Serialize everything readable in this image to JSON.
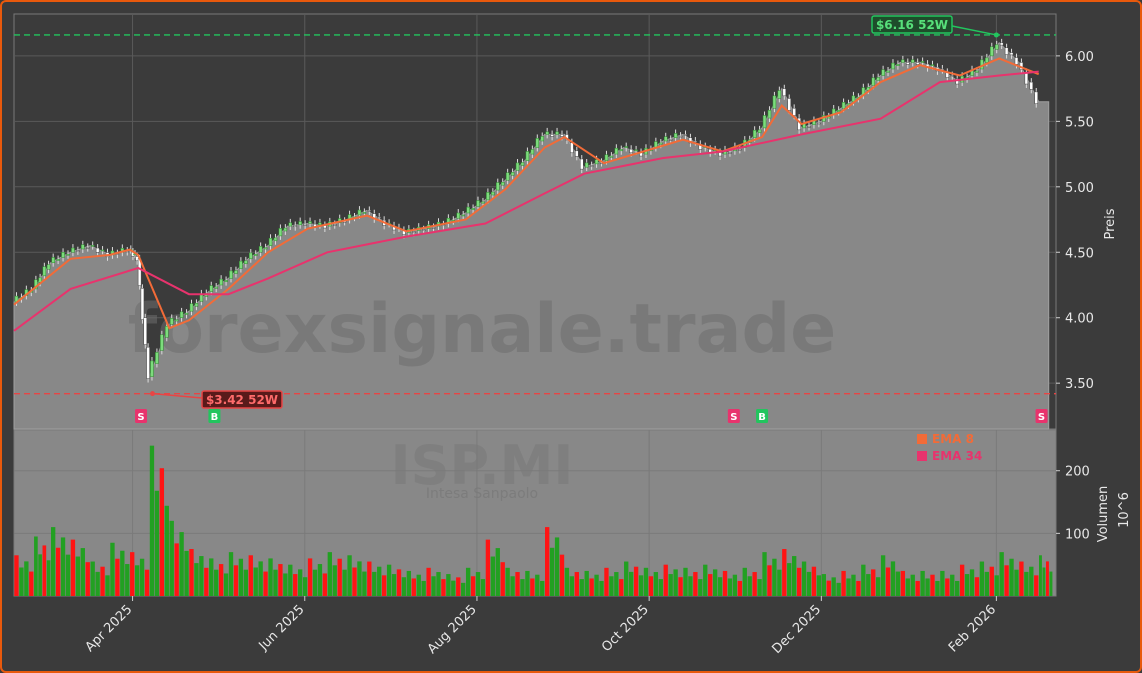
{
  "chart_data": [
    {
      "type": "candlestick",
      "panel": "price",
      "watermark": "forexsignale.trade",
      "ylabel": "Preis",
      "ylim": [
        3.15,
        6.32
      ],
      "y_ticks": [
        "3.50",
        "4.00",
        "4.50",
        "5.00",
        "5.50",
        "6.00"
      ],
      "y_tick_values": [
        3.5,
        4.0,
        4.5,
        5.0,
        5.5,
        6.0
      ],
      "x_ticks": [
        "Apr 2025",
        "Jun 2025",
        "Aug 2025",
        "Oct 2025",
        "Dec 2025",
        "Feb 2026"
      ],
      "x_tick_dates": [
        "2025-04-01",
        "2025-06-01",
        "2025-08-01",
        "2025-10-01",
        "2025-12-01",
        "2026-02-01"
      ],
      "x_range": [
        "2025-02-18",
        "2026-02-20"
      ],
      "grid": true,
      "high_52w": {
        "label": "$6.16 52W",
        "value": 6.16,
        "date": "2026-02-01"
      },
      "low_52w": {
        "label": "$3.42 52W",
        "value": 3.42,
        "date": "2025-04-07"
      },
      "close_series": [
        {
          "d": "2025-02-18",
          "v": 4.12
        },
        {
          "d": "2025-02-25",
          "v": 4.22
        },
        {
          "d": "2025-03-03",
          "v": 4.42
        },
        {
          "d": "2025-03-10",
          "v": 4.5
        },
        {
          "d": "2025-03-17",
          "v": 4.55
        },
        {
          "d": "2025-03-24",
          "v": 4.48
        },
        {
          "d": "2025-03-31",
          "v": 4.52
        },
        {
          "d": "2025-04-03",
          "v": 4.45
        },
        {
          "d": "2025-04-07",
          "v": 3.55
        },
        {
          "d": "2025-04-14",
          "v": 3.95
        },
        {
          "d": "2025-04-21",
          "v": 4.05
        },
        {
          "d": "2025-04-28",
          "v": 4.2
        },
        {
          "d": "2025-05-05",
          "v": 4.3
        },
        {
          "d": "2025-05-12",
          "v": 4.45
        },
        {
          "d": "2025-05-19",
          "v": 4.55
        },
        {
          "d": "2025-05-26",
          "v": 4.7
        },
        {
          "d": "2025-06-02",
          "v": 4.72
        },
        {
          "d": "2025-06-09",
          "v": 4.7
        },
        {
          "d": "2025-06-16",
          "v": 4.75
        },
        {
          "d": "2025-06-23",
          "v": 4.82
        },
        {
          "d": "2025-06-30",
          "v": 4.72
        },
        {
          "d": "2025-07-07",
          "v": 4.65
        },
        {
          "d": "2025-07-14",
          "v": 4.68
        },
        {
          "d": "2025-07-21",
          "v": 4.72
        },
        {
          "d": "2025-07-28",
          "v": 4.8
        },
        {
          "d": "2025-08-04",
          "v": 4.9
        },
        {
          "d": "2025-08-11",
          "v": 5.05
        },
        {
          "d": "2025-08-18",
          "v": 5.2
        },
        {
          "d": "2025-08-25",
          "v": 5.4
        },
        {
          "d": "2025-09-01",
          "v": 5.4
        },
        {
          "d": "2025-09-08",
          "v": 5.15
        },
        {
          "d": "2025-09-15",
          "v": 5.2
        },
        {
          "d": "2025-09-22",
          "v": 5.3
        },
        {
          "d": "2025-09-29",
          "v": 5.25
        },
        {
          "d": "2025-10-06",
          "v": 5.35
        },
        {
          "d": "2025-10-13",
          "v": 5.4
        },
        {
          "d": "2025-10-20",
          "v": 5.3
        },
        {
          "d": "2025-10-27",
          "v": 5.25
        },
        {
          "d": "2025-11-03",
          "v": 5.3
        },
        {
          "d": "2025-11-10",
          "v": 5.45
        },
        {
          "d": "2025-11-17",
          "v": 5.75
        },
        {
          "d": "2025-11-24",
          "v": 5.45
        },
        {
          "d": "2025-12-01",
          "v": 5.5
        },
        {
          "d": "2025-12-08",
          "v": 5.6
        },
        {
          "d": "2025-12-15",
          "v": 5.7
        },
        {
          "d": "2025-12-22",
          "v": 5.85
        },
        {
          "d": "2025-12-29",
          "v": 5.95
        },
        {
          "d": "2026-01-05",
          "v": 5.95
        },
        {
          "d": "2026-01-12",
          "v": 5.9
        },
        {
          "d": "2026-01-19",
          "v": 5.8
        },
        {
          "d": "2026-01-26",
          "v": 5.9
        },
        {
          "d": "2026-02-02",
          "v": 6.1
        },
        {
          "d": "2026-02-09",
          "v": 5.95
        },
        {
          "d": "2026-02-16",
          "v": 5.65
        }
      ],
      "series": [
        {
          "name": "EMA 8",
          "color": "#f26b38",
          "values": [
            {
              "d": "2025-02-18",
              "v": 4.1
            },
            {
              "d": "2025-03-10",
              "v": 4.45
            },
            {
              "d": "2025-03-24",
              "v": 4.48
            },
            {
              "d": "2025-03-31",
              "v": 4.52
            },
            {
              "d": "2025-04-03",
              "v": 4.48
            },
            {
              "d": "2025-04-14",
              "v": 3.92
            },
            {
              "d": "2025-04-21",
              "v": 3.98
            },
            {
              "d": "2025-05-05",
              "v": 4.22
            },
            {
              "d": "2025-05-19",
              "v": 4.5
            },
            {
              "d": "2025-06-02",
              "v": 4.68
            },
            {
              "d": "2025-06-23",
              "v": 4.78
            },
            {
              "d": "2025-07-07",
              "v": 4.66
            },
            {
              "d": "2025-07-28",
              "v": 4.75
            },
            {
              "d": "2025-08-11",
              "v": 4.98
            },
            {
              "d": "2025-08-25",
              "v": 5.3
            },
            {
              "d": "2025-09-01",
              "v": 5.38
            },
            {
              "d": "2025-09-15",
              "v": 5.18
            },
            {
              "d": "2025-09-29",
              "v": 5.27
            },
            {
              "d": "2025-10-13",
              "v": 5.36
            },
            {
              "d": "2025-10-27",
              "v": 5.27
            },
            {
              "d": "2025-11-10",
              "v": 5.38
            },
            {
              "d": "2025-11-17",
              "v": 5.62
            },
            {
              "d": "2025-11-24",
              "v": 5.48
            },
            {
              "d": "2025-12-08",
              "v": 5.57
            },
            {
              "d": "2025-12-22",
              "v": 5.8
            },
            {
              "d": "2026-01-05",
              "v": 5.93
            },
            {
              "d": "2026-01-19",
              "v": 5.85
            },
            {
              "d": "2026-02-02",
              "v": 5.98
            },
            {
              "d": "2026-02-16",
              "v": 5.86
            }
          ]
        },
        {
          "name": "EMA 34",
          "color": "#e8336d",
          "values": [
            {
              "d": "2025-02-18",
              "v": 3.9
            },
            {
              "d": "2025-03-10",
              "v": 4.22
            },
            {
              "d": "2025-04-03",
              "v": 4.38
            },
            {
              "d": "2025-04-21",
              "v": 4.18
            },
            {
              "d": "2025-05-05",
              "v": 4.18
            },
            {
              "d": "2025-05-19",
              "v": 4.3
            },
            {
              "d": "2025-06-09",
              "v": 4.5
            },
            {
              "d": "2025-07-07",
              "v": 4.62
            },
            {
              "d": "2025-08-04",
              "v": 4.72
            },
            {
              "d": "2025-08-25",
              "v": 4.95
            },
            {
              "d": "2025-09-08",
              "v": 5.1
            },
            {
              "d": "2025-10-06",
              "v": 5.22
            },
            {
              "d": "2025-10-27",
              "v": 5.27
            },
            {
              "d": "2025-11-24",
              "v": 5.4
            },
            {
              "d": "2025-12-22",
              "v": 5.52
            },
            {
              "d": "2026-01-12",
              "v": 5.8
            },
            {
              "d": "2026-02-02",
              "v": 5.85
            },
            {
              "d": "2026-02-16",
              "v": 5.88
            }
          ]
        }
      ],
      "signals": [
        {
          "type": "S",
          "date": "2025-04-04",
          "color": "#e8336d"
        },
        {
          "type": "B",
          "date": "2025-04-30",
          "color": "#22c55e"
        },
        {
          "type": "S",
          "date": "2025-10-31",
          "color": "#e8336d"
        },
        {
          "type": "B",
          "date": "2025-11-10",
          "color": "#22c55e"
        },
        {
          "type": "S",
          "date": "2026-02-17",
          "color": "#e8336d"
        }
      ]
    },
    {
      "type": "bar",
      "panel": "volume",
      "watermark": "ISP.MI",
      "watermark_sub": "Intesa Sanpaolo",
      "ylabel": "Volumen",
      "ylabel_exponent": "10^6",
      "ylim": [
        0,
        265
      ],
      "y_ticks": [
        "100",
        "200"
      ],
      "y_tick_values": [
        100,
        200
      ],
      "legend": [
        {
          "label": "EMA 8",
          "color": "#f26b38"
        },
        {
          "label": "EMA 34",
          "color": "#e8336d"
        }
      ],
      "legend_placement": "top-right",
      "volume_weeks": [
        {
          "d": "2025-02-18",
          "v": 65
        },
        {
          "d": "2025-02-25",
          "v": 95
        },
        {
          "d": "2025-03-03",
          "v": 110
        },
        {
          "d": "2025-03-10",
          "v": 90
        },
        {
          "d": "2025-03-17",
          "v": 55
        },
        {
          "d": "2025-03-24",
          "v": 85
        },
        {
          "d": "2025-03-31",
          "v": 70
        },
        {
          "d": "2025-04-07",
          "v": 240
        },
        {
          "d": "2025-04-14",
          "v": 120
        },
        {
          "d": "2025-04-21",
          "v": 75
        },
        {
          "d": "2025-04-28",
          "v": 60
        },
        {
          "d": "2025-05-05",
          "v": 70
        },
        {
          "d": "2025-05-12",
          "v": 65
        },
        {
          "d": "2025-05-19",
          "v": 60
        },
        {
          "d": "2025-05-26",
          "v": 50
        },
        {
          "d": "2025-06-02",
          "v": 60
        },
        {
          "d": "2025-06-09",
          "v": 70
        },
        {
          "d": "2025-06-16",
          "v": 65
        },
        {
          "d": "2025-06-23",
          "v": 55
        },
        {
          "d": "2025-06-30",
          "v": 50
        },
        {
          "d": "2025-07-07",
          "v": 40
        },
        {
          "d": "2025-07-14",
          "v": 45
        },
        {
          "d": "2025-07-21",
          "v": 35
        },
        {
          "d": "2025-07-28",
          "v": 45
        },
        {
          "d": "2025-08-04",
          "v": 90
        },
        {
          "d": "2025-08-11",
          "v": 45
        },
        {
          "d": "2025-08-18",
          "v": 40
        },
        {
          "d": "2025-08-25",
          "v": 110
        },
        {
          "d": "2025-09-01",
          "v": 45
        },
        {
          "d": "2025-09-08",
          "v": 40
        },
        {
          "d": "2025-09-15",
          "v": 45
        },
        {
          "d": "2025-09-22",
          "v": 55
        },
        {
          "d": "2025-09-29",
          "v": 45
        },
        {
          "d": "2025-10-06",
          "v": 50
        },
        {
          "d": "2025-10-13",
          "v": 45
        },
        {
          "d": "2025-10-20",
          "v": 50
        },
        {
          "d": "2025-10-27",
          "v": 40
        },
        {
          "d": "2025-11-03",
          "v": 45
        },
        {
          "d": "2025-11-10",
          "v": 70
        },
        {
          "d": "2025-11-17",
          "v": 75
        },
        {
          "d": "2025-11-24",
          "v": 55
        },
        {
          "d": "2025-12-01",
          "v": 35
        },
        {
          "d": "2025-12-08",
          "v": 40
        },
        {
          "d": "2025-12-15",
          "v": 50
        },
        {
          "d": "2025-12-22",
          "v": 65
        },
        {
          "d": "2025-12-29",
          "v": 40
        },
        {
          "d": "2026-01-05",
          "v": 40
        },
        {
          "d": "2026-01-12",
          "v": 40
        },
        {
          "d": "2026-01-19",
          "v": 50
        },
        {
          "d": "2026-01-26",
          "v": 55
        },
        {
          "d": "2026-02-02",
          "v": 70
        },
        {
          "d": "2026-02-09",
          "v": 55
        },
        {
          "d": "2026-02-16",
          "v": 65
        }
      ]
    }
  ],
  "colors": {
    "background": "#3b3b3b",
    "panel": "#888888",
    "border": "#e8590c",
    "up": "#22a022",
    "down": "#ff1414",
    "ema8": "#f26b38",
    "ema34": "#e8336d",
    "high_line": "#22c55e",
    "low_line": "#e84545"
  }
}
